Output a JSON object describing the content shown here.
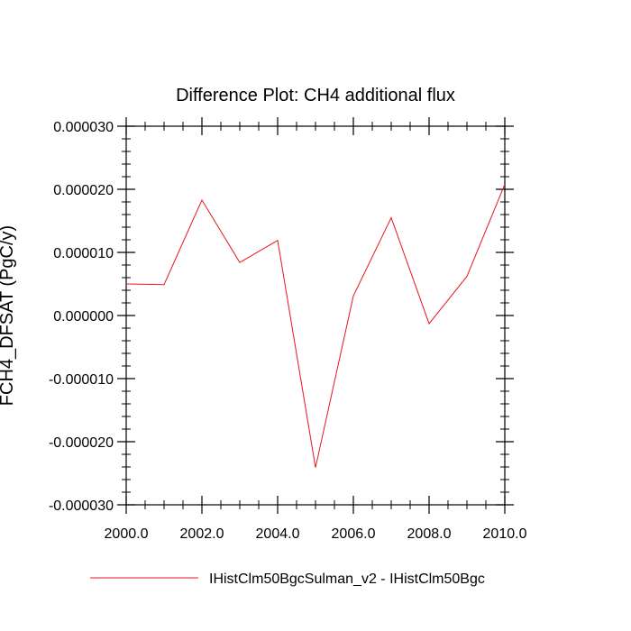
{
  "chart_data": {
    "type": "line",
    "title": "Difference Plot: CH4 additional flux",
    "xlabel": "",
    "ylabel": "FCH4_DFSAT (PgC/y)",
    "xlim": [
      2000.0,
      2010.0
    ],
    "ylim": [
      -3e-05,
      3e-05
    ],
    "x_ticks": [
      2000,
      2002,
      2004,
      2006,
      2008,
      2010
    ],
    "x_tick_labels": [
      "2000.0",
      "2002.0",
      "2004.0",
      "2006.0",
      "2008.0",
      "2010.0"
    ],
    "y_ticks": [
      -3e-05,
      -2e-05,
      -1e-05,
      0,
      1e-05,
      2e-05,
      3e-05
    ],
    "y_tick_labels": [
      "-0.000030",
      "-0.000020",
      "-0.000010",
      "0.000000",
      "0.000010",
      "0.000020",
      "0.000030"
    ],
    "grid": false,
    "legend_position": "bottom",
    "series": [
      {
        "name": "IHistClm50BgcSulman_v2 - IHistClm50Bgc",
        "color": "#e8141e",
        "x": [
          2000,
          2001,
          2002,
          2003,
          2004,
          2005,
          2006,
          2007,
          2008,
          2009,
          2010
        ],
        "y": [
          5e-06,
          4.9e-06,
          1.83e-05,
          8.4e-06,
          1.19e-05,
          -2.41e-05,
          3.1e-06,
          1.55e-05,
          -1.3e-06,
          6.2e-06,
          2.08e-05
        ]
      }
    ]
  }
}
